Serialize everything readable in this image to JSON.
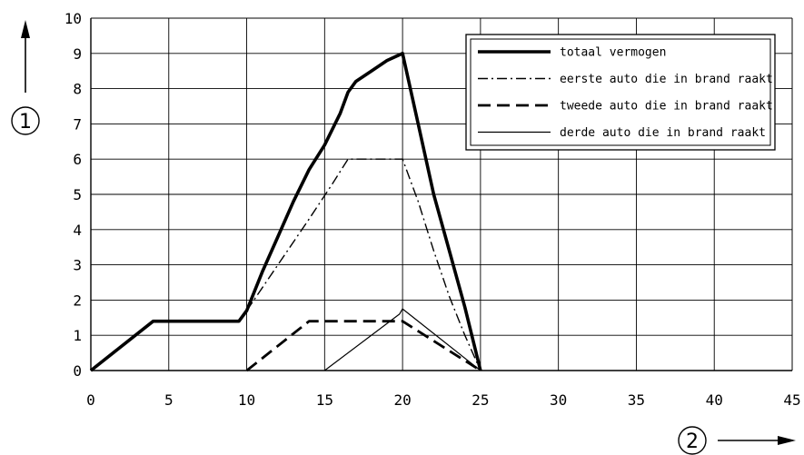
{
  "chart_data": {
    "type": "line",
    "title": "",
    "xlabel": "2",
    "ylabel": "1",
    "xlim": [
      0,
      45
    ],
    "ylim": [
      0,
      10
    ],
    "xticks": [
      "0",
      "5",
      "10",
      "15",
      "20",
      "25",
      "30",
      "35",
      "40",
      "45"
    ],
    "yticks": [
      "0",
      "1",
      "2",
      "3",
      "4",
      "5",
      "6",
      "7",
      "8",
      "9",
      "10"
    ],
    "grid": true,
    "legend_position": "top-right",
    "series": [
      {
        "name": "totaal vermogen",
        "style": "thick-solid",
        "points": [
          [
            0,
            0
          ],
          [
            4,
            1.4
          ],
          [
            9.5,
            1.4
          ],
          [
            10,
            1.7
          ],
          [
            11,
            2.8
          ],
          [
            12,
            3.8
          ],
          [
            13,
            4.8
          ],
          [
            14,
            5.7
          ],
          [
            15,
            6.4
          ],
          [
            16,
            7.3
          ],
          [
            16.5,
            7.9
          ],
          [
            17,
            8.2
          ],
          [
            18,
            8.5
          ],
          [
            19,
            8.8
          ],
          [
            20,
            9.0
          ],
          [
            21,
            7.0
          ],
          [
            22,
            5.0
          ],
          [
            23,
            3.4
          ],
          [
            24,
            1.8
          ],
          [
            25,
            0
          ]
        ]
      },
      {
        "name": "eerste auto die in brand raakt",
        "style": "dash-dot",
        "points": [
          [
            10,
            1.7
          ],
          [
            12,
            3.0
          ],
          [
            14,
            4.3
          ],
          [
            15.5,
            5.3
          ],
          [
            16.5,
            6.0
          ],
          [
            20,
            6.0
          ],
          [
            21,
            4.8
          ],
          [
            22,
            3.4
          ],
          [
            23,
            2.1
          ],
          [
            24,
            1.0
          ],
          [
            25,
            0
          ]
        ]
      },
      {
        "name": "tweede auto die in brand raakt",
        "style": "thick-dashed",
        "points": [
          [
            10,
            0
          ],
          [
            14,
            1.4
          ],
          [
            20,
            1.4
          ],
          [
            25,
            0
          ]
        ]
      },
      {
        "name": "derde auto die in brand raakt",
        "style": "thin-solid",
        "points": [
          [
            15,
            0
          ],
          [
            19.8,
            1.6
          ],
          [
            20,
            1.75
          ],
          [
            25,
            0
          ]
        ]
      }
    ]
  }
}
